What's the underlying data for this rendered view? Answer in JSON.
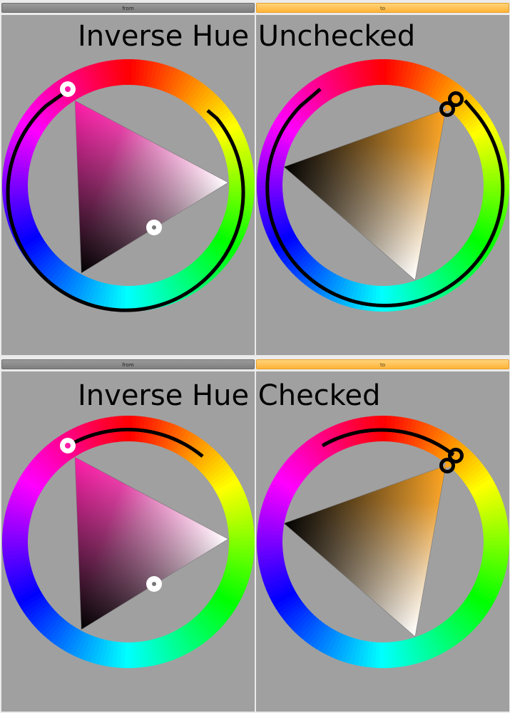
{
  "sections": [
    {
      "caption": "Inverse Hue Unchecked",
      "from_label": "from",
      "to_label": "to"
    },
    {
      "caption": "Inverse Hue Checked",
      "from_label": "from",
      "to_label": "to"
    }
  ],
  "colors": {
    "from_hue": "#ff1aa8",
    "to_hue": "#ffa21a",
    "canvas_bg": "#a0a0a0",
    "from_button": "#8a8a8a",
    "to_button": "#ffc35a"
  },
  "icons": [
    "hue-handle-icon",
    "saturation-value-handle-icon",
    "hue-arc-path"
  ]
}
